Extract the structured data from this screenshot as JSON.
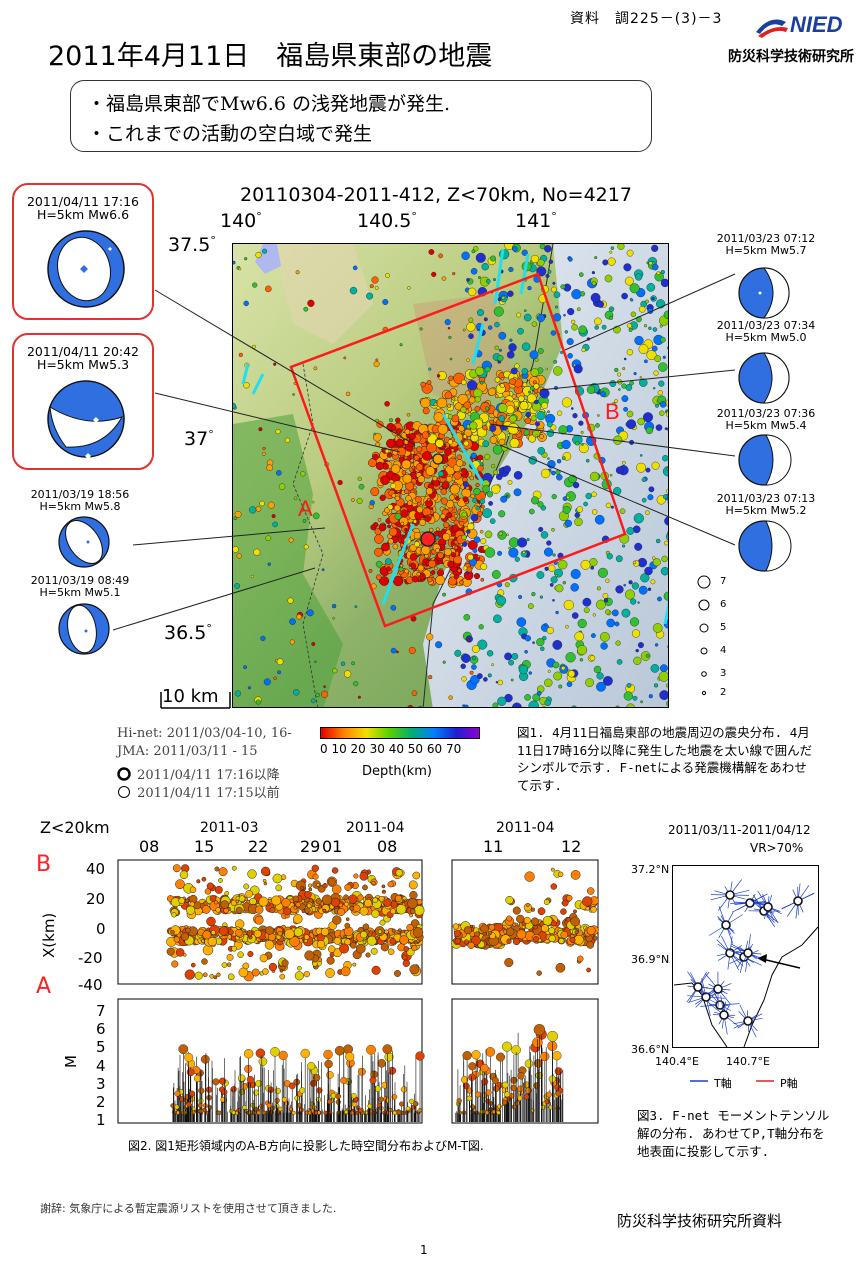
{
  "header": {
    "doc_ref": "資料　調225－(3)－3",
    "title": "2011年4月11日　福島県東部の地震",
    "logo_text": "NIED",
    "org_name": "防災科学技術研究所"
  },
  "summary": {
    "bullets": [
      "・福島県東部でMw6.6 の浅発地震が発生.",
      "・これまでの活動の空白域で発生"
    ]
  },
  "figure1": {
    "map_title": "20110304-2011-412, Z<70km, No=4217",
    "lon_ticks": [
      "140",
      "140.5",
      "141"
    ],
    "lat_ticks": [
      "37.5",
      "37",
      "36.5"
    ],
    "profile_labels": {
      "a": "A",
      "b": "B"
    },
    "scale_label": "10 km",
    "mechanisms_left": [
      {
        "datetime": "2011/04/11 17:16",
        "info": "H=5km Mw6.6",
        "highlight": true
      },
      {
        "datetime": "2011/04/11 20:42",
        "info": "H=5km Mw5.3",
        "highlight": true
      },
      {
        "datetime": "2011/03/19 18:56",
        "info": "H=5km Mw5.8",
        "highlight": false
      },
      {
        "datetime": "2011/03/19 08:49",
        "info": "H=5km Mw5.1",
        "highlight": false
      }
    ],
    "mechanisms_right": [
      {
        "datetime": "2011/03/23 07:12",
        "info": "H=5km Mw5.7"
      },
      {
        "datetime": "2011/03/23 07:34",
        "info": "H=5km Mw5.0"
      },
      {
        "datetime": "2011/03/23 07:36",
        "info": "H=5km Mw5.4"
      },
      {
        "datetime": "2011/03/23 07:13",
        "info": "H=5km Mw5.2"
      }
    ],
    "magnitude_legend": [
      "7",
      "6",
      "5",
      "4",
      "3",
      "2"
    ],
    "sources": {
      "hinet": "Hi-net: 2011/03/04-10, 16-",
      "jma": "JMA: 2011/03/11 - 15",
      "symbol_after": "2011/04/11 17:16以降",
      "symbol_before": "2011/04/11 17:15以前"
    },
    "colorbar": {
      "ticks": "0 10 20 30 40 50 60 70",
      "label": "Depth(km)"
    },
    "caption": "図1. 4月11日福島東部の地震周辺の震央分布. 4月11日17時16分以降に発生した地震を太い線で囲んだシンボルで示す. F-netによる発震機構解をあわせて示す."
  },
  "figure2": {
    "depth_filter": "Z<20km",
    "month_label_1": "2011-03",
    "month_label_2": "2011-04",
    "month_label_3": "2011-04",
    "day_ticks_left": [
      "08",
      "15",
      "22",
      "29",
      "01",
      "08"
    ],
    "day_ticks_right": [
      "11",
      "12"
    ],
    "profile_top": "B",
    "profile_bottom": "A",
    "x_axis_label": "X(km)",
    "x_ticks": [
      "40",
      "20",
      "0",
      "-20",
      "-40"
    ],
    "m_axis_label": "M",
    "m_ticks": [
      "7",
      "6",
      "5",
      "4",
      "3",
      "2",
      "1"
    ],
    "caption": "図2. 図1矩形領域内のA-B方向に投影した時空間分布およびM-T図."
  },
  "figure3": {
    "date_range": "2011/03/11-2011/04/12",
    "vr": "VR>70%",
    "lat_ticks": [
      "37.2°N",
      "36.9°N",
      "36.6°N"
    ],
    "lon_ticks": [
      "140.4°E",
      "140.7°E"
    ],
    "legend_t": "T軸",
    "legend_p": "P軸",
    "caption": "図3. F-net モーメントテンソル解の分布. あわせてP,T軸分布を地表面に投影して示す."
  },
  "footer": {
    "acknowledgement": "謝辞: 気象庁による暫定震源リストを使用させて頂きました.",
    "org_doc": "防災科学技術研究所資料",
    "page_number": "1"
  },
  "colors": {
    "highlight_red": "#e53030",
    "mechanism_blue": "#2f6fe0",
    "fault_cyan": "#20e0f0"
  }
}
